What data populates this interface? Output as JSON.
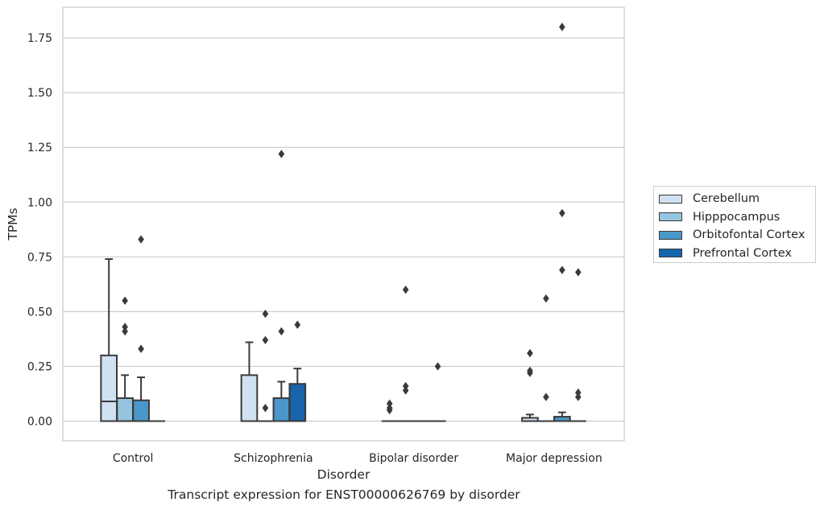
{
  "caption": "Transcript expression for ENST00000626769 by disorder",
  "chart_data": {
    "type": "box",
    "title": "",
    "xlabel": "Disorder",
    "ylabel": "TPMs",
    "ylim": [
      -0.09,
      1.89
    ],
    "yticks": [
      "0.00",
      "0.25",
      "0.50",
      "0.75",
      "1.00",
      "1.25",
      "1.50",
      "1.75"
    ],
    "grid": "horizontal",
    "legend_position": "right",
    "categories": [
      "Control",
      "Schizophrenia",
      "Bipolar disorder",
      "Major depression"
    ],
    "series": [
      {
        "name": "Cerebellum",
        "color": "#d0e1f2",
        "boxes": [
          {
            "q1": 0.0,
            "median": 0.09,
            "q3": 0.3,
            "whisker_low": 0.0,
            "whisker_high": 0.74,
            "outliers": []
          },
          {
            "q1": 0.0,
            "median": 0.0,
            "q3": 0.21,
            "whisker_low": 0.0,
            "whisker_high": 0.36,
            "outliers": []
          },
          {
            "q1": 0.0,
            "median": 0.0,
            "q3": 0.0,
            "whisker_low": 0.0,
            "whisker_high": 0.0,
            "outliers": [
              0.05,
              0.06,
              0.08
            ]
          },
          {
            "q1": 0.0,
            "median": 0.0,
            "q3": 0.015,
            "whisker_low": 0.0,
            "whisker_high": 0.03,
            "outliers": [
              0.22,
              0.23,
              0.31
            ]
          }
        ]
      },
      {
        "name": "Hipppocampus",
        "color": "#94c4df",
        "boxes": [
          {
            "q1": 0.0,
            "median": 0.0,
            "q3": 0.105,
            "whisker_low": 0.0,
            "whisker_high": 0.21,
            "outliers": [
              0.41,
              0.43,
              0.55
            ]
          },
          {
            "q1": 0.0,
            "median": 0.0,
            "q3": 0.0,
            "whisker_low": 0.0,
            "whisker_high": 0.0,
            "outliers": [
              0.06,
              0.37,
              0.49
            ]
          },
          {
            "q1": 0.0,
            "median": 0.0,
            "q3": 0.0,
            "whisker_low": 0.0,
            "whisker_high": 0.0,
            "outliers": [
              0.14,
              0.16,
              0.6
            ]
          },
          {
            "q1": 0.0,
            "median": 0.0,
            "q3": 0.0,
            "whisker_low": 0.0,
            "whisker_high": 0.0,
            "outliers": [
              0.11,
              0.56
            ]
          }
        ]
      },
      {
        "name": "Orbitofontal Cortex",
        "color": "#4a98c9",
        "boxes": [
          {
            "q1": 0.0,
            "median": 0.0,
            "q3": 0.095,
            "whisker_low": 0.0,
            "whisker_high": 0.2,
            "outliers": [
              0.33,
              0.83
            ]
          },
          {
            "q1": 0.0,
            "median": 0.0,
            "q3": 0.105,
            "whisker_low": 0.0,
            "whisker_high": 0.18,
            "outliers": [
              0.41,
              1.22
            ]
          },
          {
            "q1": 0.0,
            "median": 0.0,
            "q3": 0.0,
            "whisker_low": 0.0,
            "whisker_high": 0.0,
            "outliers": []
          },
          {
            "q1": 0.0,
            "median": 0.0,
            "q3": 0.02,
            "whisker_low": 0.0,
            "whisker_high": 0.04,
            "outliers": [
              0.69,
              0.95,
              1.8
            ]
          }
        ]
      },
      {
        "name": "Prefrontal Cortex",
        "color": "#1764ab",
        "boxes": [
          {
            "q1": 0.0,
            "median": 0.0,
            "q3": 0.0,
            "whisker_low": 0.0,
            "whisker_high": 0.0,
            "outliers": []
          },
          {
            "q1": 0.0,
            "median": 0.0,
            "q3": 0.17,
            "whisker_low": 0.0,
            "whisker_high": 0.24,
            "outliers": [
              0.44
            ]
          },
          {
            "q1": 0.0,
            "median": 0.0,
            "q3": 0.0,
            "whisker_low": 0.0,
            "whisker_high": 0.0,
            "outliers": [
              0.25
            ]
          },
          {
            "q1": 0.0,
            "median": 0.0,
            "q3": 0.0,
            "whisker_low": 0.0,
            "whisker_high": 0.0,
            "outliers": [
              0.11,
              0.13,
              0.68
            ]
          }
        ]
      }
    ]
  }
}
